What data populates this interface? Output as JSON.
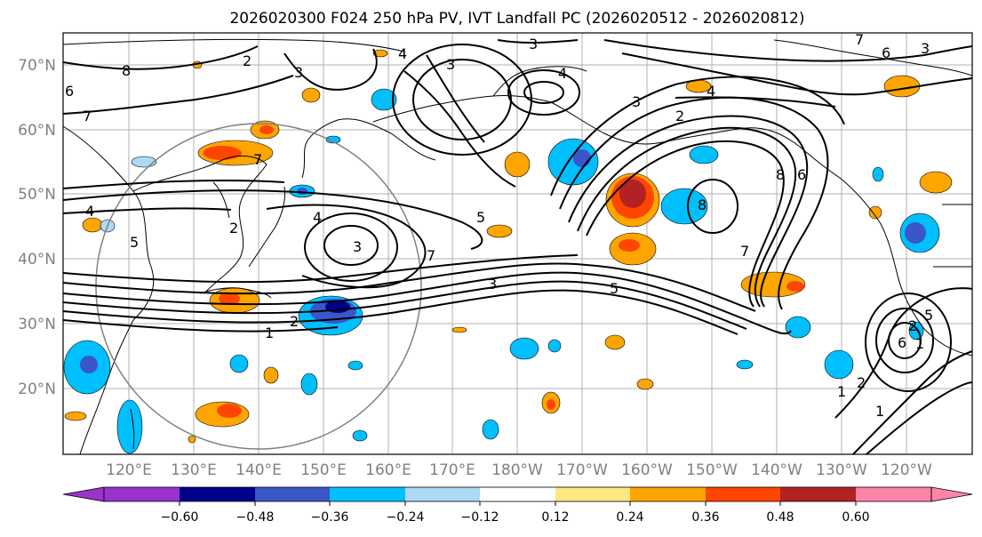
{
  "figure": {
    "title": "2026020300 F024 250 hPa PV, IVT Landfall PC (2026020512 - 2026020812)"
  },
  "map": {
    "lat_labels": [
      "70°N",
      "60°N",
      "50°N",
      "40°N",
      "30°N",
      "20°N"
    ],
    "lon_labels": [
      "120°E",
      "130°E",
      "140°E",
      "150°E",
      "160°E",
      "170°E",
      "180°W",
      "170°W",
      "160°W",
      "150°W",
      "140°W",
      "130°W",
      "120°W"
    ],
    "contour_labels": [
      "8",
      "7",
      "6",
      "7",
      "4",
      "3",
      "5",
      "4",
      "3",
      "4",
      "5",
      "7",
      "3",
      "2",
      "1",
      "2",
      "3",
      "4",
      "4",
      "3",
      "2",
      "8",
      "7",
      "8",
      "6",
      "7",
      "6",
      "2",
      "1",
      "6",
      "5",
      "5",
      "3",
      "2",
      "1",
      "1",
      "2",
      "3"
    ]
  },
  "colorbar": {
    "tick_labels": [
      "−0.60",
      "−0.48",
      "−0.36",
      "−0.24",
      "−0.12",
      "0.12",
      "0.24",
      "0.36",
      "0.48",
      "0.60"
    ],
    "colors": [
      "#9933cc",
      "#00008b",
      "#3a56c8",
      "#00bfff",
      "#add8f6",
      "#ffffff",
      "#ffe680",
      "#ffa500",
      "#ff4500",
      "#b22222",
      "#ff85a8"
    ]
  }
}
